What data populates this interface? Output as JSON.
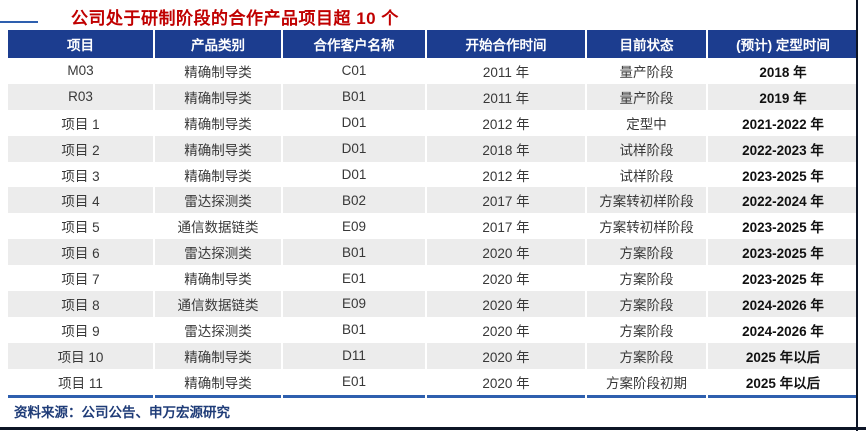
{
  "page": {
    "title": "公司处于研制阶段的合作产品项目超 10 个",
    "source_note": "资料来源：公司公告、申万宏源研究"
  },
  "colors": {
    "title_red": "#C00000",
    "header_blue": "#1C3D8F",
    "stripe_gray": "#ECECEC",
    "rule_blue": "#2E5FAE",
    "footer_blue": "#1F3C78",
    "page_border": "#0D1526"
  },
  "table": {
    "headers": [
      "项目",
      "产品类别",
      "合作客户名称",
      "开始合作时间",
      "目前状态",
      "(预计) 定型时间"
    ],
    "rows": [
      [
        "M03",
        "精确制导类",
        "C01",
        "2011 年",
        "量产阶段",
        "2018 年"
      ],
      [
        "R03",
        "精确制导类",
        "B01",
        "2011 年",
        "量产阶段",
        "2019 年"
      ],
      [
        "项目 1",
        "精确制导类",
        "D01",
        "2012 年",
        "定型中",
        "2021-2022 年"
      ],
      [
        "项目 2",
        "精确制导类",
        "D01",
        "2018 年",
        "试样阶段",
        "2022-2023 年"
      ],
      [
        "项目 3",
        "精确制导类",
        "D01",
        "2012 年",
        "试样阶段",
        "2023-2025 年"
      ],
      [
        "项目 4",
        "雷达探测类",
        "B02",
        "2017 年",
        "方案转初样阶段",
        "2022-2024 年"
      ],
      [
        "项目 5",
        "通信数据链类",
        "E09",
        "2017 年",
        "方案转初样阶段",
        "2023-2025 年"
      ],
      [
        "项目 6",
        "雷达探测类",
        "B01",
        "2020 年",
        "方案阶段",
        "2023-2025 年"
      ],
      [
        "项目 7",
        "精确制导类",
        "E01",
        "2020 年",
        "方案阶段",
        "2023-2025 年"
      ],
      [
        "项目 8",
        "通信数据链类",
        "E09",
        "2020 年",
        "方案阶段",
        "2024-2026 年"
      ],
      [
        "项目 9",
        "雷达探测类",
        "B01",
        "2020 年",
        "方案阶段",
        "2024-2026 年"
      ],
      [
        "项目 10",
        "精确制导类",
        "D11",
        "2020 年",
        "方案阶段",
        "2025 年以后"
      ],
      [
        "项目 11",
        "精确制导类",
        "E01",
        "2020 年",
        "方案阶段初期",
        "2025 年以后"
      ]
    ]
  }
}
